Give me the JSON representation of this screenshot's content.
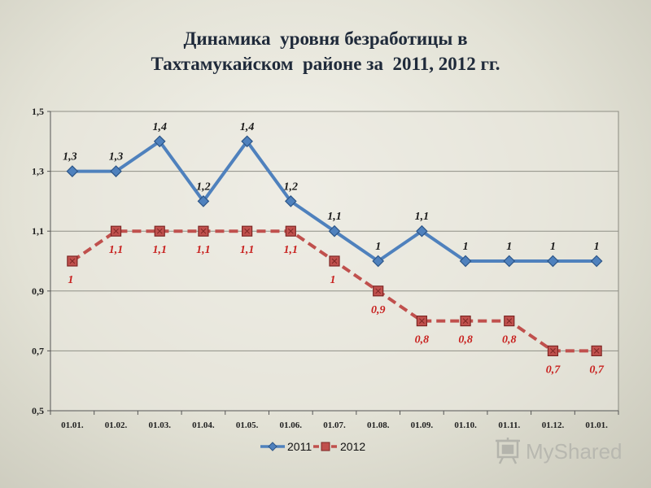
{
  "chart_data": {
    "type": "line",
    "title": [
      "Динамика  уровня безработицы в",
      "Тахтамукайском  районе за  2011, 2012 гг."
    ],
    "categories": [
      "01.01.",
      "01.02.",
      "01.03.",
      "01.04.",
      "01.05.",
      "01.06.",
      "01.07.",
      "01.08.",
      "01.09.",
      "01.10.",
      "01.11.",
      "01.12.",
      "01.01."
    ],
    "y_ticks": [
      "0,5",
      "0,7",
      "0,9",
      "1,1",
      "1,3",
      "1,5"
    ],
    "ylim": [
      0.5,
      1.5
    ],
    "grid": true,
    "legend_position": "bottom",
    "series": [
      {
        "name": "2011",
        "color": "#4f81bd",
        "style": "solid",
        "marker": "diamond",
        "values": [
          1.3,
          1.3,
          1.4,
          1.2,
          1.4,
          1.2,
          1.1,
          1.0,
          1.1,
          1.0,
          1.0,
          1.0,
          1.0
        ],
        "labels": [
          "1,3",
          "1,3",
          "1,4",
          "1,2",
          "1,4",
          "1,2",
          "1,1",
          "1",
          "1,1",
          "1",
          "1",
          "1",
          "1"
        ]
      },
      {
        "name": "2012",
        "color": "#c0504d",
        "style": "dashed",
        "marker": "square",
        "values": [
          1.0,
          1.1,
          1.1,
          1.1,
          1.1,
          1.1,
          1.0,
          0.9,
          0.8,
          0.8,
          0.8,
          0.7,
          0.7
        ],
        "labels": [
          "1",
          "1,1",
          "1,1",
          "1,1",
          "1,1",
          "1,1",
          "1",
          "0,9",
          "0,8",
          "0,8",
          "0,8",
          "0,7",
          "0,7"
        ]
      }
    ]
  },
  "watermark": {
    "text": "MyShared",
    "icon": "presentation-board-icon"
  }
}
